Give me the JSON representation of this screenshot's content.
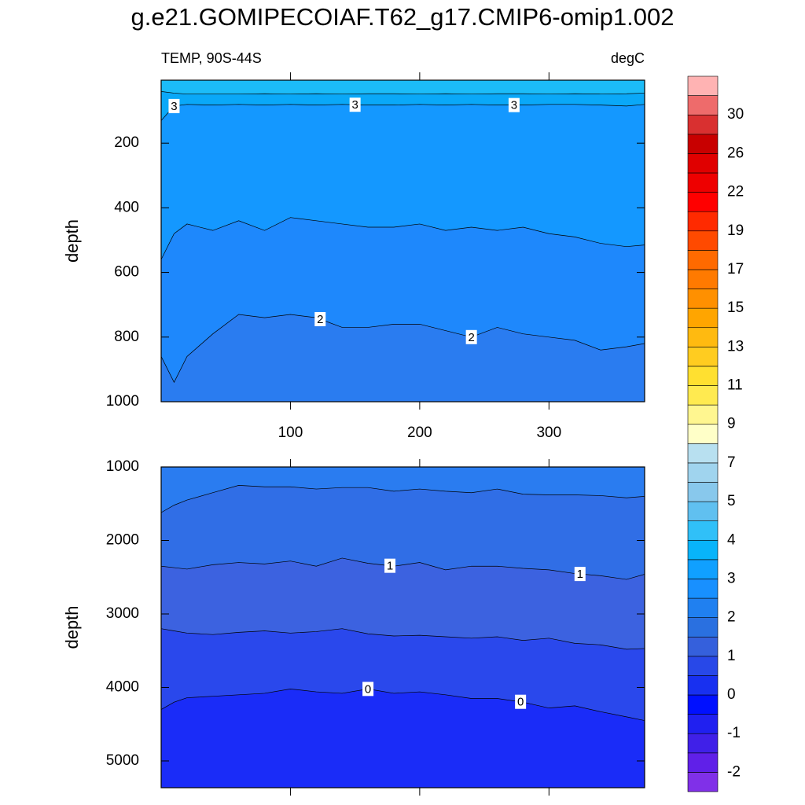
{
  "chart_data": {
    "type": "contour",
    "title": "g.e21.GOMIPECOIAF.T62_g17.CMIP6-omip1.002",
    "subtitle_left": "TEMP, 90S-44S",
    "subtitle_right": "degC",
    "xlim": [
      0,
      374
    ],
    "xticks": [
      100,
      200,
      300
    ],
    "x": [
      0,
      10,
      20,
      40,
      60,
      80,
      100,
      120,
      140,
      160,
      180,
      200,
      220,
      240,
      260,
      280,
      300,
      320,
      340,
      360,
      374
    ],
    "panels": [
      {
        "ylabel": "depth",
        "ylim": [
          5,
          1000
        ],
        "yticks": [
          200,
          400,
          600,
          800,
          1000
        ],
        "y_reversed": true,
        "show_xtick_labels": true,
        "top_color": "#1cbcf8",
        "contours": [
          {
            "color_below": "#0aa8f8",
            "depths": [
              40,
              45,
              48,
              48,
              48,
              47,
              48,
              47,
              48,
              47,
              47,
              48,
              47,
              48,
              47,
              47,
              48,
              47,
              48,
              47,
              45
            ]
          },
          {
            "level": 3,
            "label_x": [
              10,
              150,
              273
            ],
            "color_below": "#1498ff",
            "depths": [
              130,
              85,
              80,
              82,
              80,
              82,
              80,
              82,
              80,
              82,
              82,
              80,
              82,
              80,
              82,
              82,
              80,
              80,
              82,
              85,
              80
            ]
          },
          {
            "color_below": "#1e88fc",
            "depths": [
              560,
              480,
              450,
              470,
              440,
              470,
              430,
              440,
              450,
              460,
              460,
              450,
              470,
              460,
              470,
              460,
              480,
              490,
              510,
              520,
              515
            ]
          },
          {
            "level": 2,
            "label_x": [
              123,
              240
            ],
            "color_below": "#2a7cf0",
            "depths": [
              860,
              940,
              860,
              790,
              730,
              740,
              730,
              740,
              770,
              770,
              760,
              760,
              780,
              800,
              770,
              790,
              800,
              810,
              840,
              830,
              820
            ]
          }
        ]
      },
      {
        "ylabel": "depth",
        "ylim": [
          1000,
          5364
        ],
        "yticks": [
          1000,
          2000,
          3000,
          4000,
          5000
        ],
        "y_reversed": true,
        "show_xtick_labels": false,
        "top_color": "#2a7cf0",
        "contours": [
          {
            "color_below": "#306ee6",
            "depths": [
              1620,
              1520,
              1450,
              1350,
              1250,
              1270,
              1270,
              1300,
              1280,
              1280,
              1330,
              1300,
              1330,
              1350,
              1300,
              1370,
              1380,
              1380,
              1390,
              1420,
              1400
            ]
          },
          {
            "level": 1,
            "label_x": [
              177,
              324
            ],
            "color_below": "#3c62e0",
            "depths": [
              2350,
              2370,
              2390,
              2330,
              2300,
              2320,
              2280,
              2350,
              2240,
              2310,
              2350,
              2300,
              2400,
              2350,
              2350,
              2380,
              2400,
              2450,
              2480,
              2530,
              2460
            ]
          },
          {
            "color_below": "#2a48ec",
            "depths": [
              3200,
              3230,
              3260,
              3280,
              3250,
              3230,
              3260,
              3240,
              3200,
              3270,
              3300,
              3290,
              3310,
              3330,
              3310,
              3360,
              3330,
              3400,
              3420,
              3480,
              3470
            ]
          },
          {
            "level": 0,
            "label_x": [
              160,
              278
            ],
            "color_below": "#1a2cf8",
            "depths": [
              4300,
              4200,
              4140,
              4120,
              4100,
              4080,
              4020,
              4060,
              4080,
              4020,
              4080,
              4060,
              4100,
              4150,
              4150,
              4200,
              4280,
              4250,
              4330,
              4400,
              4450
            ]
          }
        ]
      }
    ],
    "colorbar": {
      "levels": [
        -2,
        -1,
        0,
        1,
        2,
        3,
        4,
        5,
        7,
        9,
        11,
        13,
        15,
        17,
        19,
        22,
        26,
        30
      ],
      "colors": [
        "#8030e8",
        "#6020e8",
        "#4020e8",
        "#2020f0",
        "#0010ff",
        "#1830f0",
        "#2848e8",
        "#3560dc",
        "#2a70e0",
        "#2080f0",
        "#1890ff",
        "#10a0ff",
        "#08b4fa",
        "#30c0f8",
        "#60c0f0",
        "#88c8ec",
        "#a0d4ee",
        "#b8e0f0",
        "#ffffc8",
        "#fff690",
        "#ffea50",
        "#ffe030",
        "#ffcc20",
        "#ffba10",
        "#ffa500",
        "#ff9000",
        "#ff7a00",
        "#ff6a00",
        "#ff4a00",
        "#ff2a00",
        "#ff0000",
        "#ee0000",
        "#e00000",
        "#c80000",
        "#d93030",
        "#ee6b6b",
        "#ffb3b3"
      ]
    }
  }
}
